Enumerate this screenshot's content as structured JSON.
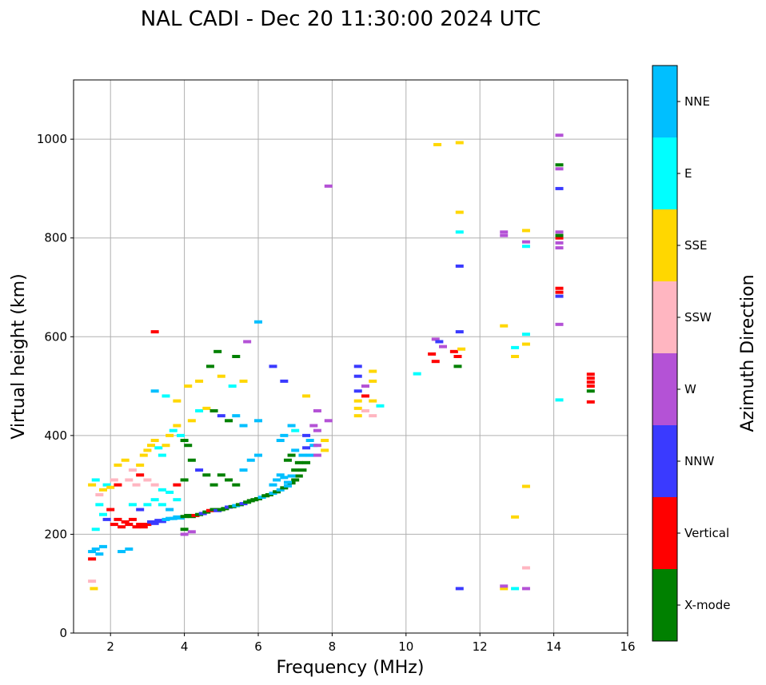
{
  "chart_data": {
    "type": "scatter",
    "title": "NAL CADI - Dec 20 11:30:00 2024 UTC",
    "xlabel": "Frequency (MHz)",
    "ylabel": "Virtual height (km)",
    "xlim": [
      1,
      16
    ],
    "ylim": [
      0,
      1120
    ],
    "xticks": [
      2,
      4,
      6,
      8,
      10,
      12,
      14,
      16
    ],
    "yticks": [
      0,
      200,
      400,
      600,
      800,
      1000
    ],
    "grid": true,
    "colorbar": {
      "label": "Azimuth Direction",
      "categories": [
        "X-mode",
        "Vertical",
        "NNW",
        "W",
        "SSW",
        "SSE",
        "E",
        "NNE"
      ],
      "colors": [
        "#008000",
        "#ff0000",
        "#3a3aff",
        "#b452d6",
        "#ffb6c1",
        "#ffd700",
        "#00ffff",
        "#00bfff"
      ]
    },
    "points": [
      [
        1.5,
        165,
        "NNE"
      ],
      [
        1.6,
        170,
        "NNE"
      ],
      [
        1.7,
        160,
        "NNE"
      ],
      [
        1.8,
        175,
        "NNE"
      ],
      [
        2.3,
        165,
        "NNE"
      ],
      [
        2.5,
        170,
        "NNE"
      ],
      [
        1.5,
        150,
        "Vertical"
      ],
      [
        1.6,
        210,
        "E"
      ],
      [
        1.5,
        105,
        "SSW"
      ],
      [
        1.55,
        90,
        "SSE"
      ],
      [
        1.5,
        300,
        "SSE"
      ],
      [
        1.6,
        310,
        "E"
      ],
      [
        1.7,
        280,
        "SSW"
      ],
      [
        1.8,
        290,
        "SSE"
      ],
      [
        1.9,
        300,
        "E"
      ],
      [
        2.0,
        295,
        "SSE"
      ],
      [
        2.1,
        310,
        "SSW"
      ],
      [
        2.2,
        300,
        "Vertical"
      ],
      [
        1.7,
        260,
        "E"
      ],
      [
        1.8,
        240,
        "E"
      ],
      [
        1.9,
        230,
        "NNW"
      ],
      [
        2.0,
        250,
        "Vertical"
      ],
      [
        2.1,
        220,
        "Vertical"
      ],
      [
        2.2,
        230,
        "Vertical"
      ],
      [
        2.3,
        215,
        "Vertical"
      ],
      [
        2.4,
        225,
        "Vertical"
      ],
      [
        2.5,
        220,
        "Vertical"
      ],
      [
        2.6,
        230,
        "Vertical"
      ],
      [
        2.7,
        215,
        "Vertical"
      ],
      [
        2.8,
        220,
        "Vertical"
      ],
      [
        2.9,
        215,
        "Vertical"
      ],
      [
        3.0,
        220,
        "Vertical"
      ],
      [
        3.1,
        225,
        "NNW"
      ],
      [
        3.2,
        222,
        "NNW"
      ],
      [
        3.3,
        228,
        "NNW"
      ],
      [
        3.4,
        226,
        "NNW"
      ],
      [
        3.5,
        230,
        "NNE"
      ],
      [
        3.6,
        232,
        "NNE"
      ],
      [
        3.7,
        232,
        "NNE"
      ],
      [
        3.8,
        235,
        "NNE"
      ],
      [
        3.9,
        233,
        "NNE"
      ],
      [
        4.0,
        236,
        "X-mode"
      ],
      [
        4.1,
        238,
        "X-mode"
      ],
      [
        4.2,
        236,
        "X-mode"
      ],
      [
        4.3,
        238,
        "Vertical"
      ],
      [
        4.4,
        240,
        "X-mode"
      ],
      [
        4.5,
        242,
        "NNW"
      ],
      [
        4.6,
        245,
        "X-mode"
      ],
      [
        4.7,
        248,
        "Vertical"
      ],
      [
        4.8,
        250,
        "X-mode"
      ],
      [
        4.9,
        248,
        "NNW"
      ],
      [
        5.0,
        250,
        "X-mode"
      ],
      [
        5.1,
        252,
        "X-mode"
      ],
      [
        5.2,
        255,
        "NNW"
      ],
      [
        5.3,
        256,
        "X-mode"
      ],
      [
        5.4,
        258,
        "NNE"
      ],
      [
        5.5,
        260,
        "X-mode"
      ],
      [
        5.6,
        262,
        "NNW"
      ],
      [
        5.7,
        265,
        "X-mode"
      ],
      [
        5.8,
        268,
        "X-mode"
      ],
      [
        5.9,
        270,
        "X-mode"
      ],
      [
        6.0,
        272,
        "X-mode"
      ],
      [
        6.1,
        275,
        "NNE"
      ],
      [
        6.2,
        278,
        "X-mode"
      ],
      [
        6.3,
        280,
        "X-mode"
      ],
      [
        6.4,
        283,
        "NNE"
      ],
      [
        6.5,
        286,
        "X-mode"
      ],
      [
        6.6,
        290,
        "NNE"
      ],
      [
        6.7,
        294,
        "X-mode"
      ],
      [
        6.8,
        298,
        "NNE"
      ],
      [
        6.9,
        304,
        "X-mode"
      ],
      [
        7.0,
        310,
        "X-mode"
      ],
      [
        7.1,
        318,
        "X-mode"
      ],
      [
        7.2,
        330,
        "X-mode"
      ],
      [
        7.3,
        345,
        "X-mode"
      ],
      [
        7.4,
        360,
        "NNE"
      ],
      [
        7.5,
        380,
        "NNE"
      ],
      [
        6.4,
        300,
        "NNE"
      ],
      [
        6.5,
        310,
        "NNE"
      ],
      [
        6.6,
        320,
        "NNE"
      ],
      [
        6.7,
        315,
        "NNE"
      ],
      [
        6.8,
        305,
        "NNE"
      ],
      [
        6.9,
        318,
        "NNE"
      ],
      [
        7.0,
        330,
        "X-mode"
      ],
      [
        7.1,
        345,
        "X-mode"
      ],
      [
        7.2,
        360,
        "NNE"
      ],
      [
        7.3,
        375,
        "NNW"
      ],
      [
        7.4,
        390,
        "NNE"
      ],
      [
        6.8,
        350,
        "X-mode"
      ],
      [
        6.9,
        360,
        "X-mode"
      ],
      [
        7.0,
        370,
        "NNE"
      ],
      [
        6.6,
        390,
        "NNE"
      ],
      [
        6.7,
        400,
        "NNE"
      ],
      [
        6.9,
        420,
        "NNE"
      ],
      [
        7.0,
        410,
        "E"
      ],
      [
        7.3,
        400,
        "NNW"
      ],
      [
        7.5,
        420,
        "W"
      ],
      [
        7.6,
        410,
        "W"
      ],
      [
        7.6,
        380,
        "W"
      ],
      [
        7.6,
        360,
        "W"
      ],
      [
        7.6,
        450,
        "W"
      ],
      [
        7.8,
        370,
        "SSE"
      ],
      [
        7.8,
        390,
        "SSE"
      ],
      [
        7.9,
        430,
        "W"
      ],
      [
        2.2,
        340,
        "SSE"
      ],
      [
        2.4,
        350,
        "SSE"
      ],
      [
        2.6,
        330,
        "SSW"
      ],
      [
        2.8,
        340,
        "SSE"
      ],
      [
        2.9,
        360,
        "SSE"
      ],
      [
        3.0,
        370,
        "SSE"
      ],
      [
        3.1,
        380,
        "SSE"
      ],
      [
        3.2,
        390,
        "SSE"
      ],
      [
        3.3,
        375,
        "E"
      ],
      [
        3.4,
        360,
        "E"
      ],
      [
        3.5,
        380,
        "SSE"
      ],
      [
        3.6,
        400,
        "SSE"
      ],
      [
        3.7,
        410,
        "E"
      ],
      [
        3.8,
        420,
        "SSE"
      ],
      [
        3.9,
        400,
        "E"
      ],
      [
        4.0,
        390,
        "X-mode"
      ],
      [
        4.1,
        380,
        "X-mode"
      ],
      [
        2.5,
        310,
        "SSW"
      ],
      [
        2.7,
        300,
        "SSW"
      ],
      [
        2.8,
        320,
        "Vertical"
      ],
      [
        3.0,
        310,
        "SSW"
      ],
      [
        3.2,
        300,
        "SSW"
      ],
      [
        3.4,
        290,
        "E"
      ],
      [
        3.6,
        285,
        "E"
      ],
      [
        3.8,
        300,
        "Vertical"
      ],
      [
        4.0,
        310,
        "X-mode"
      ],
      [
        2.6,
        260,
        "E"
      ],
      [
        2.8,
        250,
        "NNW"
      ],
      [
        3.0,
        260,
        "E"
      ],
      [
        3.2,
        270,
        "E"
      ],
      [
        3.4,
        260,
        "E"
      ],
      [
        3.6,
        250,
        "NNE"
      ],
      [
        3.8,
        270,
        "E"
      ],
      [
        4.0,
        210,
        "X-mode"
      ],
      [
        4.2,
        205,
        "W"
      ],
      [
        4.0,
        200,
        "W"
      ],
      [
        4.2,
        350,
        "X-mode"
      ],
      [
        4.4,
        330,
        "NNW"
      ],
      [
        4.6,
        320,
        "X-mode"
      ],
      [
        4.8,
        300,
        "X-mode"
      ],
      [
        5.0,
        320,
        "X-mode"
      ],
      [
        5.2,
        310,
        "X-mode"
      ],
      [
        5.4,
        300,
        "X-mode"
      ],
      [
        5.6,
        330,
        "NNE"
      ],
      [
        5.8,
        350,
        "NNE"
      ],
      [
        6.0,
        360,
        "NNE"
      ],
      [
        4.2,
        430,
        "SSE"
      ],
      [
        4.4,
        450,
        "E"
      ],
      [
        4.6,
        455,
        "SSE"
      ],
      [
        4.8,
        450,
        "X-mode"
      ],
      [
        5.0,
        440,
        "NNW"
      ],
      [
        5.2,
        430,
        "X-mode"
      ],
      [
        5.4,
        440,
        "NNE"
      ],
      [
        5.6,
        420,
        "NNE"
      ],
      [
        6.0,
        430,
        "NNE"
      ],
      [
        3.2,
        490,
        "NNE"
      ],
      [
        3.5,
        480,
        "E"
      ],
      [
        3.8,
        470,
        "SSE"
      ],
      [
        4.1,
        500,
        "SSE"
      ],
      [
        4.4,
        510,
        "SSE"
      ],
      [
        4.7,
        540,
        "X-mode"
      ],
      [
        5.0,
        520,
        "SSE"
      ],
      [
        5.3,
        500,
        "E"
      ],
      [
        5.6,
        510,
        "SSE"
      ],
      [
        6.0,
        630,
        "NNE"
      ],
      [
        6.4,
        540,
        "NNW"
      ],
      [
        6.7,
        510,
        "NNW"
      ],
      [
        3.2,
        610,
        "Vertical"
      ],
      [
        4.9,
        570,
        "X-mode"
      ],
      [
        5.4,
        560,
        "X-mode"
      ],
      [
        5.7,
        590,
        "W"
      ],
      [
        7.3,
        480,
        "SSE"
      ],
      [
        8.7,
        440,
        "SSE"
      ],
      [
        8.7,
        455,
        "SSE"
      ],
      [
        8.7,
        470,
        "SSE"
      ],
      [
        8.7,
        490,
        "NNW"
      ],
      [
        8.7,
        520,
        "NNW"
      ],
      [
        8.7,
        540,
        "NNW"
      ],
      [
        8.9,
        480,
        "Vertical"
      ],
      [
        8.9,
        500,
        "W"
      ],
      [
        8.9,
        450,
        "SSW"
      ],
      [
        9.1,
        470,
        "SSE"
      ],
      [
        9.1,
        510,
        "SSE"
      ],
      [
        9.1,
        530,
        "SSE"
      ],
      [
        9.1,
        440,
        "SSW"
      ],
      [
        9.3,
        460,
        "E"
      ],
      [
        10.3,
        525,
        "E"
      ],
      [
        10.7,
        565,
        "Vertical"
      ],
      [
        10.8,
        550,
        "Vertical"
      ],
      [
        10.8,
        595,
        "W"
      ],
      [
        10.9,
        590,
        "NNW"
      ],
      [
        11.0,
        580,
        "W"
      ],
      [
        11.3,
        570,
        "Vertical"
      ],
      [
        11.4,
        560,
        "Vertical"
      ],
      [
        11.4,
        540,
        "X-mode"
      ],
      [
        11.5,
        575,
        "SSE"
      ],
      [
        11.45,
        610,
        "NNW"
      ],
      [
        11.45,
        743,
        "NNW"
      ],
      [
        11.45,
        812,
        "E"
      ],
      [
        11.45,
        852,
        "SSE"
      ],
      [
        11.45,
        993,
        "SSE"
      ],
      [
        10.85,
        989,
        "SSE"
      ],
      [
        11.45,
        90,
        "NNW"
      ],
      [
        7.9,
        905,
        "W"
      ],
      [
        12.65,
        622,
        "SSE"
      ],
      [
        12.65,
        805,
        "W"
      ],
      [
        12.65,
        812,
        "W"
      ],
      [
        12.65,
        90,
        "SSE"
      ],
      [
        12.65,
        95,
        "W"
      ],
      [
        12.95,
        90,
        "E"
      ],
      [
        12.95,
        235,
        "SSE"
      ],
      [
        12.95,
        560,
        "SSE"
      ],
      [
        12.95,
        578,
        "E"
      ],
      [
        13.25,
        90,
        "W"
      ],
      [
        13.25,
        132,
        "SSW"
      ],
      [
        13.25,
        297,
        "SSE"
      ],
      [
        13.25,
        585,
        "SSE"
      ],
      [
        13.25,
        605,
        "E"
      ],
      [
        13.25,
        783,
        "E"
      ],
      [
        13.25,
        792,
        "W"
      ],
      [
        13.25,
        815,
        "SSE"
      ],
      [
        14.15,
        472,
        "E"
      ],
      [
        14.15,
        625,
        "W"
      ],
      [
        14.15,
        682,
        "NNW"
      ],
      [
        14.15,
        690,
        "Vertical"
      ],
      [
        14.15,
        698,
        "Vertical"
      ],
      [
        14.15,
        780,
        "W"
      ],
      [
        14.15,
        790,
        "W"
      ],
      [
        14.15,
        800,
        "Vertical"
      ],
      [
        14.15,
        805,
        "X-mode"
      ],
      [
        14.15,
        812,
        "W"
      ],
      [
        14.15,
        900,
        "NNW"
      ],
      [
        14.15,
        940,
        "W"
      ],
      [
        14.15,
        948,
        "X-mode"
      ],
      [
        14.15,
        1008,
        "W"
      ],
      [
        15.0,
        468,
        "Vertical"
      ],
      [
        15.0,
        490,
        "X-mode"
      ],
      [
        15.0,
        500,
        "Vertical"
      ],
      [
        15.0,
        508,
        "Vertical"
      ],
      [
        15.0,
        516,
        "Vertical"
      ],
      [
        15.0,
        524,
        "Vertical"
      ]
    ]
  }
}
